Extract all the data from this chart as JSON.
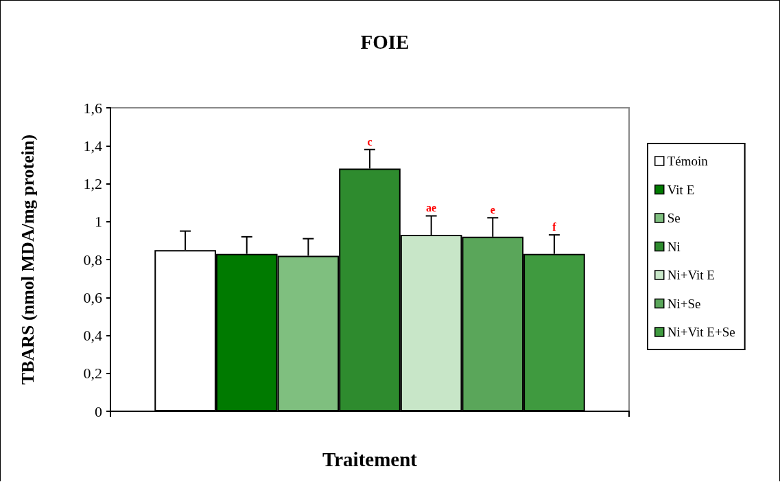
{
  "chart_data": {
    "type": "bar",
    "title": "FOIE",
    "xlabel": "Traitement",
    "ylabel": "TBARS (nmol MDA/mg protein)",
    "categories": [
      null
    ],
    "series": [
      {
        "name": "Témoin",
        "color": "#ffffff",
        "values": [
          0.85
        ],
        "errors": [
          0.1
        ]
      },
      {
        "name": "Vit E",
        "color": "#007a00",
        "values": [
          0.83
        ],
        "errors": [
          0.09
        ]
      },
      {
        "name": "Se",
        "color": "#7fbf7f",
        "values": [
          0.82
        ],
        "errors": [
          0.09
        ]
      },
      {
        "name": "Ni",
        "color": "#2e8b2e",
        "values": [
          1.28
        ],
        "errors": [
          0.1
        ],
        "value_labels": [
          "c"
        ]
      },
      {
        "name": "Ni+Vit E",
        "color": "#c8e6c8",
        "values": [
          0.93
        ],
        "errors": [
          0.1
        ],
        "value_labels": [
          "ae"
        ]
      },
      {
        "name": "Ni+Se",
        "color": "#5aa65a",
        "values": [
          0.92
        ],
        "errors": [
          0.1
        ],
        "value_labels": [
          "e"
        ]
      },
      {
        "name": "Ni+Vit E+Se",
        "color": "#3f9a3f",
        "values": [
          0.83
        ],
        "errors": [
          0.1
        ],
        "value_labels": [
          "f"
        ]
      }
    ],
    "ylim": [
      0,
      1.6
    ],
    "yticks": [
      0,
      {
        "value": 0.2,
        "label": "0,2"
      },
      {
        "value": 0.4,
        "label": "0,4"
      },
      {
        "value": 0.6,
        "label": "0,6"
      },
      {
        "value": 0.8,
        "label": "0,8"
      },
      1,
      {
        "value": 1.2,
        "label": "1,2"
      },
      {
        "value": 1.4,
        "label": "1,4"
      },
      {
        "value": 1.6,
        "label": "1,6"
      }
    ],
    "grid": false,
    "legend": "right"
  }
}
